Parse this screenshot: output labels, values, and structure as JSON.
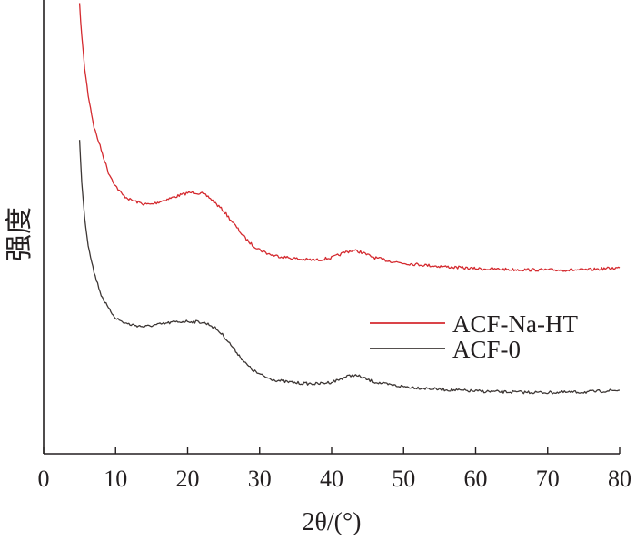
{
  "chart_data": {
    "type": "line",
    "xlabel": "2θ/(°)",
    "ylabel": "强度",
    "xlim": [
      0,
      80
    ],
    "ylim": [
      0,
      1
    ],
    "xticks": [
      "0",
      "10",
      "20",
      "30",
      "40",
      "50",
      "60",
      "70",
      "80"
    ],
    "yticks_shown": false,
    "grid": false,
    "legend_position": "right",
    "series": [
      {
        "name": "ACF-Na-HT",
        "color": "#d42a2f",
        "points": [
          [
            5,
            0.99
          ],
          [
            5.3,
            0.92
          ],
          [
            5.7,
            0.85
          ],
          [
            6.2,
            0.79
          ],
          [
            7,
            0.72
          ],
          [
            8,
            0.67
          ],
          [
            9,
            0.62
          ],
          [
            10,
            0.59
          ],
          [
            11,
            0.57
          ],
          [
            12,
            0.56
          ],
          [
            13,
            0.555
          ],
          [
            14,
            0.55
          ],
          [
            15,
            0.55
          ],
          [
            16,
            0.555
          ],
          [
            17,
            0.56
          ],
          [
            18,
            0.565
          ],
          [
            19,
            0.57
          ],
          [
            20,
            0.575
          ],
          [
            21,
            0.576
          ],
          [
            22,
            0.573
          ],
          [
            23,
            0.565
          ],
          [
            24,
            0.55
          ],
          [
            25,
            0.535
          ],
          [
            26,
            0.515
          ],
          [
            27,
            0.495
          ],
          [
            28,
            0.475
          ],
          [
            29,
            0.46
          ],
          [
            30,
            0.45
          ],
          [
            31,
            0.442
          ],
          [
            32,
            0.437
          ],
          [
            34,
            0.432
          ],
          [
            36,
            0.428
          ],
          [
            38,
            0.427
          ],
          [
            40,
            0.432
          ],
          [
            41,
            0.438
          ],
          [
            42,
            0.445
          ],
          [
            43,
            0.448
          ],
          [
            44,
            0.445
          ],
          [
            45,
            0.438
          ],
          [
            46,
            0.432
          ],
          [
            48,
            0.425
          ],
          [
            50,
            0.42
          ],
          [
            55,
            0.413
          ],
          [
            60,
            0.408
          ],
          [
            65,
            0.406
          ],
          [
            70,
            0.405
          ],
          [
            75,
            0.405
          ],
          [
            80,
            0.41
          ]
        ]
      },
      {
        "name": "ACF-0",
        "color": "#3d3735",
        "points": [
          [
            5,
            0.69
          ],
          [
            5.3,
            0.6
          ],
          [
            5.7,
            0.52
          ],
          [
            6.2,
            0.46
          ],
          [
            7,
            0.4
          ],
          [
            8,
            0.35
          ],
          [
            9,
            0.32
          ],
          [
            10,
            0.3
          ],
          [
            11,
            0.29
          ],
          [
            12,
            0.285
          ],
          [
            14,
            0.28
          ],
          [
            16,
            0.285
          ],
          [
            18,
            0.29
          ],
          [
            20,
            0.292
          ],
          [
            22,
            0.29
          ],
          [
            23,
            0.285
          ],
          [
            24,
            0.275
          ],
          [
            25,
            0.26
          ],
          [
            26,
            0.24
          ],
          [
            27,
            0.22
          ],
          [
            28,
            0.2
          ],
          [
            29,
            0.185
          ],
          [
            30,
            0.175
          ],
          [
            31,
            0.168
          ],
          [
            32,
            0.163
          ],
          [
            34,
            0.158
          ],
          [
            36,
            0.155
          ],
          [
            38,
            0.154
          ],
          [
            40,
            0.158
          ],
          [
            41,
            0.163
          ],
          [
            42,
            0.17
          ],
          [
            43,
            0.173
          ],
          [
            44,
            0.17
          ],
          [
            45,
            0.163
          ],
          [
            46,
            0.158
          ],
          [
            48,
            0.152
          ],
          [
            50,
            0.148
          ],
          [
            55,
            0.142
          ],
          [
            60,
            0.138
          ],
          [
            65,
            0.136
          ],
          [
            70,
            0.135
          ],
          [
            75,
            0.136
          ],
          [
            80,
            0.14
          ]
        ]
      }
    ]
  }
}
